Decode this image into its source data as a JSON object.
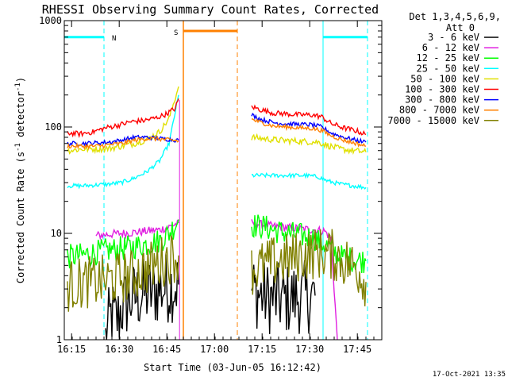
{
  "chart_data": {
    "type": "line",
    "title": "RHESSI Observing Summary Count Rates, Corrected",
    "xlabel": "Start Time (03-Jun-05 16:12:42)",
    "ylabel": "Corrected Count Rate (s",
    "ylabel_sup": "-1",
    "ylabel_mid": " detector",
    "ylabel_end": ")",
    "yscale": "log",
    "ylim": [
      1,
      1000
    ],
    "xlim_minutes": [
      0,
      100
    ],
    "x_ticks": [
      {
        "label": "16:15",
        "minute": 2.3
      },
      {
        "label": "16:30",
        "minute": 17.3
      },
      {
        "label": "16:45",
        "minute": 32.3
      },
      {
        "label": "17:00",
        "minute": 47.3
      },
      {
        "label": "17:15",
        "minute": 62.3
      },
      {
        "label": "17:30",
        "minute": 77.3
      },
      {
        "label": "17:45",
        "minute": 92.3
      }
    ],
    "y_ticks": [
      {
        "label": "1",
        "value": 1
      },
      {
        "label": "10",
        "value": 10
      },
      {
        "label": "100",
        "value": 100
      },
      {
        "label": "1000",
        "value": 1000
      }
    ],
    "legend_header": [
      "Det 1,3,4,5,6,9,",
      "Att 0"
    ],
    "legend_position": "right",
    "series": [
      {
        "name": "3 - 6 keV",
        "color": "#000000",
        "segments": [
          [
            [
              13,
              1
            ],
            [
              14,
              1.4
            ],
            [
              15,
              1.8
            ],
            [
              16,
              1.5
            ],
            [
              17,
              1.6
            ],
            [
              18,
              2.0
            ],
            [
              20,
              2.3
            ],
            [
              22,
              2.5
            ],
            [
              25,
              2.7
            ],
            [
              28,
              2.8
            ],
            [
              30,
              3.0
            ],
            [
              32,
              3.1
            ],
            [
              36,
              3.3
            ]
          ],
          [
            [
              59,
              3.0
            ],
            [
              61,
              2.7
            ],
            [
              64,
              2.5
            ],
            [
              67,
              2.4
            ],
            [
              70,
              2.4
            ],
            [
              73,
              2.5
            ],
            [
              76,
              2.5
            ],
            [
              79,
              2.6
            ]
          ]
        ]
      },
      {
        "name": "6 - 12 keV",
        "color": "#e020e0",
        "segments": [
          [
            [
              10,
              9.5
            ],
            [
              14,
              9.8
            ],
            [
              18,
              10.0
            ],
            [
              22,
              10.2
            ],
            [
              26,
              10.5
            ],
            [
              30,
              10.8
            ],
            [
              33,
              11.5
            ],
            [
              36,
              12.5
            ]
          ],
          [
            [
              59,
              12.5
            ],
            [
              63,
              12.0
            ],
            [
              67,
              11.5
            ],
            [
              71,
              11.3
            ],
            [
              75,
              11.0
            ],
            [
              79,
              10.8
            ],
            [
              82,
              10.5
            ],
            [
              84,
              9.0
            ],
            [
              85,
              3.0
            ],
            [
              86,
              1.0
            ]
          ]
        ]
      },
      {
        "name": "12 - 25 keV",
        "color": "#00ff00",
        "segments": [
          [
            [
              1,
              6.0
            ],
            [
              5,
              6.2
            ],
            [
              9,
              6.5
            ],
            [
              12,
              6.8
            ],
            [
              15,
              7.0
            ],
            [
              20,
              7.3
            ],
            [
              25,
              7.8
            ],
            [
              30,
              8.5
            ],
            [
              33,
              10.0
            ],
            [
              36,
              13.5
            ]
          ],
          [
            [
              59,
              12.0
            ],
            [
              63,
              11.5
            ],
            [
              67,
              10.5
            ],
            [
              71,
              10.0
            ],
            [
              75,
              9.5
            ],
            [
              79,
              9.0
            ],
            [
              83,
              7.5
            ],
            [
              87,
              6.0
            ],
            [
              91,
              5.7
            ],
            [
              95,
              5.5
            ]
          ]
        ]
      },
      {
        "name": "25 - 50 keV",
        "color": "#00ffff",
        "segments": [
          [
            [
              1,
              28
            ],
            [
              6,
              28
            ],
            [
              10,
              28.5
            ],
            [
              14,
              29
            ],
            [
              18,
              30
            ],
            [
              22,
              33
            ],
            [
              26,
              38
            ],
            [
              30,
              48
            ],
            [
              33,
              70
            ],
            [
              36,
              200
            ]
          ],
          [
            [
              59,
              35
            ],
            [
              64,
              35
            ],
            [
              68,
              35
            ],
            [
              72,
              35
            ],
            [
              76,
              35
            ],
            [
              80,
              34
            ],
            [
              83,
              31
            ],
            [
              87,
              29
            ],
            [
              91,
              28
            ],
            [
              95,
              27
            ]
          ]
        ]
      },
      {
        "name": "50 - 100 keV",
        "color": "#e0e000",
        "segments": [
          [
            [
              1,
              60
            ],
            [
              6,
              62
            ],
            [
              10,
              62
            ],
            [
              14,
              63
            ],
            [
              18,
              66
            ],
            [
              22,
              70
            ],
            [
              26,
              76
            ],
            [
              30,
              90
            ],
            [
              33,
              120
            ],
            [
              36,
              240
            ]
          ],
          [
            [
              59,
              80
            ],
            [
              64,
              77
            ],
            [
              68,
              75
            ],
            [
              72,
              74
            ],
            [
              76,
              73
            ],
            [
              80,
              72
            ],
            [
              83,
              67
            ],
            [
              87,
              62
            ],
            [
              91,
              60
            ],
            [
              95,
              58
            ]
          ]
        ]
      },
      {
        "name": "100 - 300 keV",
        "color": "#ff0000",
        "segments": [
          [
            [
              1,
              88
            ],
            [
              5,
              86
            ],
            [
              9,
              90
            ],
            [
              13,
              98
            ],
            [
              17,
              104
            ],
            [
              21,
              112
            ],
            [
              25,
              115
            ],
            [
              29,
              122
            ],
            [
              32,
              132
            ],
            [
              35,
              150
            ],
            [
              36,
              185
            ]
          ],
          [
            [
              59,
              155
            ],
            [
              62,
              145
            ],
            [
              66,
              135
            ],
            [
              70,
              133
            ],
            [
              74,
              130
            ],
            [
              78,
              130
            ],
            [
              81,
              125
            ],
            [
              84,
              108
            ],
            [
              88,
              98
            ],
            [
              92,
              92
            ],
            [
              95,
              85
            ]
          ]
        ]
      },
      {
        "name": "300 - 800 keV",
        "color": "#0000ff",
        "segments": [
          [
            [
              1,
              70
            ],
            [
              6,
              70
            ],
            [
              10,
              71
            ],
            [
              14,
              72
            ],
            [
              18,
              75
            ],
            [
              22,
              80
            ],
            [
              26,
              80
            ],
            [
              30,
              78
            ],
            [
              34,
              76
            ],
            [
              36,
              75
            ]
          ],
          [
            [
              59,
              130
            ],
            [
              62,
              118
            ],
            [
              66,
              110
            ],
            [
              70,
              107
            ],
            [
              74,
              106
            ],
            [
              78,
              105
            ],
            [
              81,
              100
            ],
            [
              84,
              88
            ],
            [
              88,
              80
            ],
            [
              92,
              75
            ],
            [
              95,
              72
            ]
          ]
        ]
      },
      {
        "name": "800 - 7000 keV",
        "color": "#ff8000",
        "segments": [
          [
            [
              1,
              66
            ],
            [
              6,
              66
            ],
            [
              10,
              66
            ],
            [
              14,
              68
            ],
            [
              18,
              70
            ],
            [
              22,
              75
            ],
            [
              26,
              78
            ],
            [
              30,
              77
            ],
            [
              34,
              75
            ],
            [
              36,
              74
            ]
          ],
          [
            [
              59,
              118
            ],
            [
              62,
              110
            ],
            [
              66,
              102
            ],
            [
              70,
              100
            ],
            [
              74,
              98
            ],
            [
              78,
              97
            ],
            [
              81,
              93
            ],
            [
              84,
              83
            ],
            [
              88,
              75
            ],
            [
              92,
              70
            ],
            [
              95,
              66
            ]
          ]
        ]
      },
      {
        "name": "7000 - 15000 keV",
        "color": "#808000",
        "segments": [
          [
            [
              1,
              3.2
            ],
            [
              5,
              3.4
            ],
            [
              9,
              3.5
            ],
            [
              13,
              3.6
            ],
            [
              17,
              3.8
            ],
            [
              21,
              4.0
            ],
            [
              25,
              4.5
            ],
            [
              28,
              5.0
            ],
            [
              31,
              5.5
            ],
            [
              34,
              6.0
            ],
            [
              36,
              6.2
            ]
          ],
          [
            [
              59,
              4.5
            ],
            [
              63,
              5.0
            ],
            [
              67,
              5.5
            ],
            [
              71,
              5.8
            ],
            [
              75,
              6.2
            ],
            [
              79,
              6.5
            ],
            [
              82,
              6.5
            ],
            [
              85,
              6.2
            ],
            [
              88,
              5.5
            ],
            [
              92,
              4.8
            ],
            [
              95,
              3.5
            ]
          ]
        ]
      }
    ],
    "annotations": {
      "night_label": "N",
      "saa_label": "S",
      "night_bands": [
        [
          0,
          12.5
        ],
        [
          81.5,
          95.5
        ]
      ],
      "night_level": 700,
      "saa_band": [
        37.5,
        54.5
      ],
      "saa_level": 800,
      "night_color": "#00ffff",
      "saa_color": "#ff8000",
      "flare_line_minute": 36.3,
      "flare_line_color": "#e020e0"
    },
    "footer_timestamp": "17-Oct-2021 13:35"
  }
}
